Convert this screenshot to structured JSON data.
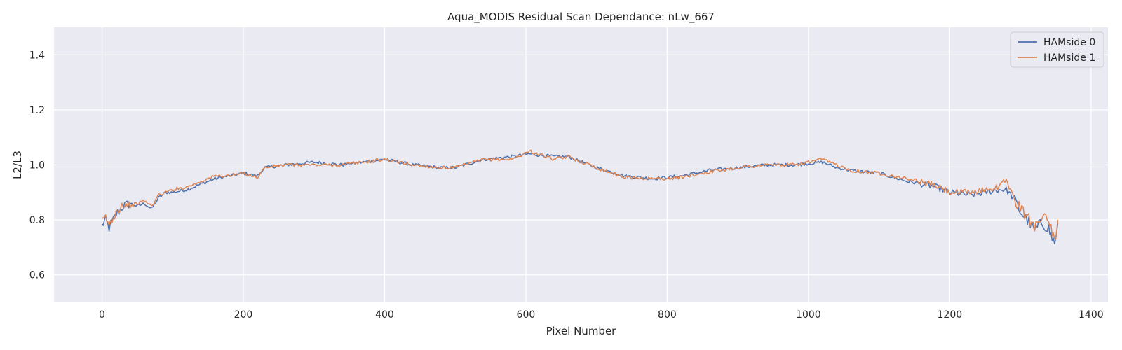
{
  "chart_data": {
    "type": "line",
    "title": "Aqua_MODIS Residual Scan Dependance: nLw_667",
    "xlabel": "Pixel Number",
    "ylabel": "L2/L3",
    "xlim": [
      -68,
      1424
    ],
    "ylim": [
      0.5,
      1.5
    ],
    "xticks": [
      0,
      200,
      400,
      600,
      800,
      1000,
      1200,
      1400
    ],
    "xtick_labels": [
      "0",
      "200",
      "400",
      "600",
      "800",
      "1000",
      "1200",
      "1400"
    ],
    "yticks": [
      0.6,
      0.8,
      1.0,
      1.2,
      1.4
    ],
    "ytick_labels": [
      "0.6",
      "0.8",
      "1.0",
      "1.2",
      "1.4"
    ],
    "grid": true,
    "legend_position": "top-right",
    "background_color": "#eaeaf2",
    "grid_color": "#ffffff",
    "series": [
      {
        "name": "HAMside 0",
        "color": "#4c72b0",
        "x": [
          0,
          5,
          10,
          20,
          30,
          40,
          50,
          60,
          70,
          80,
          90,
          100,
          120,
          140,
          160,
          180,
          200,
          220,
          230,
          260,
          300,
          340,
          370,
          400,
          440,
          480,
          500,
          540,
          580,
          605,
          640,
          660,
          700,
          740,
          780,
          800,
          820,
          860,
          900,
          940,
          980,
          1020,
          1040,
          1060,
          1100,
          1140,
          1180,
          1200,
          1230,
          1250,
          1270,
          1280,
          1290,
          1300,
          1310,
          1320,
          1330,
          1340,
          1345,
          1350,
          1353
        ],
        "y": [
          0.78,
          0.8,
          0.77,
          0.82,
          0.85,
          0.86,
          0.85,
          0.86,
          0.84,
          0.88,
          0.9,
          0.9,
          0.91,
          0.93,
          0.95,
          0.96,
          0.97,
          0.96,
          0.99,
          1.0,
          1.01,
          1.0,
          1.01,
          1.02,
          1.0,
          0.99,
          0.99,
          1.02,
          1.03,
          1.04,
          1.03,
          1.03,
          0.99,
          0.96,
          0.95,
          0.955,
          0.96,
          0.98,
          0.99,
          1.0,
          1.0,
          1.01,
          0.99,
          0.98,
          0.97,
          0.94,
          0.92,
          0.9,
          0.89,
          0.9,
          0.91,
          0.91,
          0.88,
          0.83,
          0.8,
          0.76,
          0.79,
          0.77,
          0.73,
          0.72,
          0.79
        ]
      },
      {
        "name": "HAMside 1",
        "color": "#dd8452",
        "x": [
          0,
          5,
          10,
          20,
          30,
          40,
          50,
          60,
          70,
          80,
          90,
          100,
          120,
          140,
          160,
          180,
          200,
          220,
          230,
          260,
          300,
          340,
          370,
          400,
          440,
          480,
          500,
          540,
          580,
          605,
          640,
          660,
          700,
          740,
          780,
          800,
          820,
          860,
          900,
          940,
          980,
          1020,
          1040,
          1060,
          1100,
          1140,
          1180,
          1200,
          1230,
          1250,
          1270,
          1280,
          1290,
          1300,
          1310,
          1320,
          1330,
          1340,
          1345,
          1350,
          1353
        ],
        "y": [
          0.79,
          0.81,
          0.78,
          0.83,
          0.86,
          0.85,
          0.86,
          0.87,
          0.85,
          0.89,
          0.9,
          0.91,
          0.92,
          0.94,
          0.96,
          0.96,
          0.97,
          0.955,
          0.99,
          1.0,
          1.0,
          1.0,
          1.01,
          1.02,
          1.0,
          0.99,
          0.99,
          1.02,
          1.02,
          1.05,
          1.02,
          1.03,
          0.99,
          0.955,
          0.95,
          0.95,
          0.955,
          0.975,
          0.99,
          1.0,
          1.0,
          1.02,
          1.0,
          0.98,
          0.97,
          0.95,
          0.925,
          0.9,
          0.9,
          0.91,
          0.92,
          0.95,
          0.88,
          0.84,
          0.81,
          0.78,
          0.82,
          0.79,
          0.75,
          0.71,
          0.8
        ]
      }
    ]
  }
}
